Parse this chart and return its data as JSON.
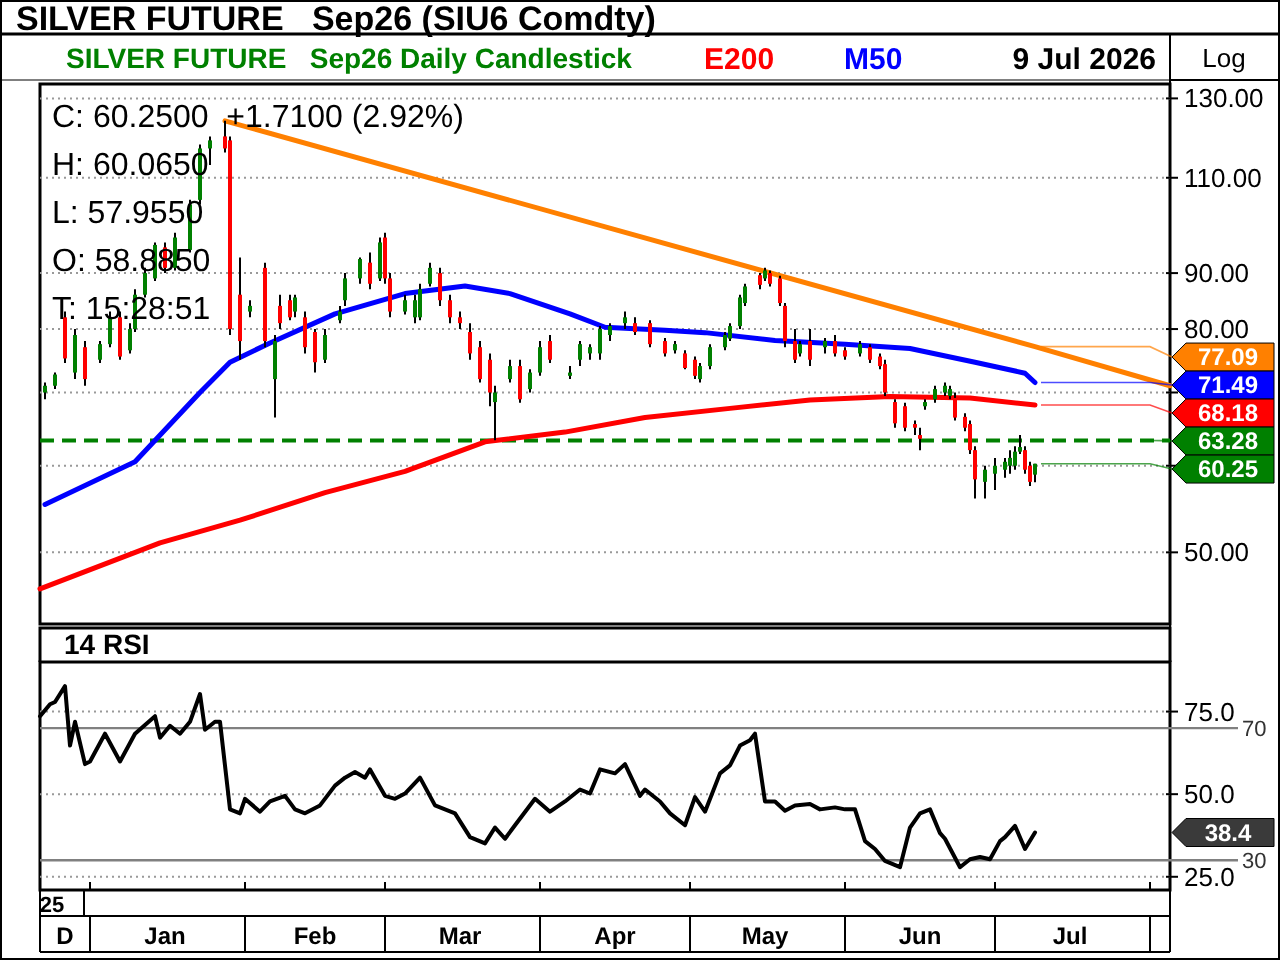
{
  "chart_data": [
    {
      "type": "candlestick",
      "title": "SILVER FUTURE   Sep26 (SIU6 Comdty)",
      "subtitle": "SILVER FUTURE   Sep26 Daily Candlestick",
      "legend": "top",
      "log": true,
      "grid": "y",
      "tick_labels": "y",
      "annotations": [
        "C: 60.2500  +1.7100 (2.92%)",
        "H: 60.0650",
        "L: 57.9550",
        "O: 58.8850",
        "T: 15:28:51",
        "9 Jul 2026",
        "Log",
        {
          "text": "60.25",
          "x": "2026-07-09",
          "y": 60.25
        }
      ],
      "xlim": [
        "2025-12-22",
        "2026-08-05"
      ],
      "ylim": [
        43,
        134
      ],
      "yticks": [
        {
          "value": 50,
          "label": "50.00"
        },
        {
          "value": 60,
          "label": null
        },
        {
          "value": 70,
          "label": null
        },
        {
          "value": 80,
          "label": "80.00"
        },
        {
          "value": 90,
          "label": "90.00"
        },
        {
          "value": 110,
          "label": "110.00"
        },
        {
          "value": 130,
          "label": "130.00"
        }
      ],
      "ref_lines": [
        {
          "axis": "y",
          "value": 63.28,
          "label": "63.28",
          "color": "#008000",
          "line_style": "dashed"
        }
      ],
      "series": [
        {
          "type": "candlestick",
          "color": "#008000",
          "x": [
            "2025-12-23",
            "2025-12-25",
            "2025-12-29",
            "2026-01-03",
            "2026-01-05",
            "2026-01-09",
            "2026-01-10",
            "2026-01-12",
            "2026-01-14",
            "2026-01-18",
            "2026-01-21",
            "2026-01-23",
            "2026-01-25",
            "2026-02-02",
            "2026-02-07",
            "2026-02-11",
            "2026-02-17",
            "2026-02-20",
            "2026-02-21",
            "2026-02-24",
            "2026-02-28",
            "2026-03-05",
            "2026-03-07",
            "2026-03-08",
            "2026-03-10",
            "2026-03-23",
            "2026-03-26",
            "2026-03-30",
            "2026-04-01",
            "2026-04-07",
            "2026-04-09",
            "2026-04-11",
            "2026-04-13",
            "2026-04-15",
            "2026-04-18",
            "2026-04-28",
            "2026-05-03",
            "2026-05-05",
            "2026-05-08",
            "2026-05-09",
            "2026-05-11",
            "2026-05-12",
            "2026-05-16",
            "2026-05-23",
            "2026-05-28",
            "2026-06-04",
            "2026-06-17",
            "2026-06-19",
            "2026-06-21",
            "2026-06-22",
            "2026-06-29",
            "2026-07-01",
            "2026-07-03",
            "2026-07-04",
            "2026-07-05",
            "2026-07-06",
            "2026-07-09"
          ],
          "ohlc": [
            [
              70,
              71.5,
              69,
              71
            ],
            [
              71,
              73,
              70.5,
              72.7
            ],
            [
              73,
              80,
              72,
              79
            ],
            [
              75,
              78,
              74.5,
              77.5
            ],
            [
              77.5,
              83,
              77,
              82
            ],
            [
              76.5,
              81,
              76,
              80
            ],
            [
              80,
              87,
              79.5,
              86
            ],
            [
              86,
              91,
              85.5,
              90
            ],
            [
              89,
              96,
              88.5,
              95.5
            ],
            [
              91,
              98,
              90.5,
              97
            ],
            [
              94.5,
              105,
              94,
              104
            ],
            [
              105,
              118,
              104,
              117
            ],
            [
              117,
              120,
              113,
              119
            ],
            [
              83,
              85,
              82,
              84
            ],
            [
              72,
              79,
              66.4,
              78
            ],
            [
              83,
              86,
              82,
              85.5
            ],
            [
              75,
              80,
              74.5,
              79
            ],
            [
              81.5,
              84,
              81,
              83
            ],
            [
              85,
              90,
              84,
              89
            ],
            [
              89,
              93,
              88,
              92.7
            ],
            [
              89,
              97,
              88.5,
              96
            ],
            [
              83,
              86,
              82.5,
              85
            ],
            [
              82,
              86,
              81,
              85
            ],
            [
              82,
              88,
              81.5,
              87
            ],
            [
              88,
              92,
              87.5,
              91
            ],
            [
              68.6,
              71,
              63.3,
              70
            ],
            [
              72,
              75,
              71.5,
              74
            ],
            [
              70.5,
              73.5,
              70,
              73
            ],
            [
              73,
              78,
              72.5,
              77
            ],
            [
              72.5,
              74,
              72,
              73
            ],
            [
              75,
              78,
              74,
              77.5
            ],
            [
              76,
              77.5,
              75,
              77
            ],
            [
              76,
              80.5,
              75,
              80
            ],
            [
              79,
              81,
              78,
              80.5
            ],
            [
              81,
              83,
              80,
              82
            ],
            [
              76.5,
              78,
              76,
              77.5
            ],
            [
              72,
              74.5,
              71.5,
              74
            ],
            [
              74,
              77.5,
              73.5,
              77
            ],
            [
              77,
              79.5,
              76.5,
              79
            ],
            [
              78.4,
              81,
              78,
              80.5
            ],
            [
              80.5,
              86,
              80,
              85.5
            ],
            [
              84.5,
              88,
              84,
              87.5
            ],
            [
              89,
              91,
              88.5,
              90.5
            ],
            [
              76,
              78,
              75.5,
              77.5
            ],
            [
              77,
              78.5,
              76,
              78
            ],
            [
              76,
              78,
              75.5,
              77.5
            ],
            [
              68,
              69,
              67.5,
              68.6
            ],
            [
              69,
              71,
              68.5,
              70.5
            ],
            [
              70,
              71.5,
              69.5,
              71
            ],
            [
              69.5,
              71,
              69,
              70.5
            ],
            [
              58,
              60,
              56,
              59.5
            ],
            [
              59,
              61,
              57,
              60
            ],
            [
              59.5,
              61,
              58.5,
              60.5
            ],
            [
              60,
              62,
              59,
              61
            ],
            [
              60,
              62.5,
              59.5,
              61.8
            ],
            [
              61.8,
              64,
              61.5,
              62.4
            ],
            [
              58.885,
              60.25,
              57.955,
              60.25
            ]
          ]
        },
        {
          "type": "candlestick",
          "color": "#ff0000",
          "x": [
            "2025-12-27",
            "2025-12-31",
            "2026-01-07",
            "2026-01-16",
            "2026-01-28",
            "2026-01-29",
            "2026-01-31",
            "2026-02-05",
            "2026-02-08",
            "2026-02-10",
            "2026-02-13",
            "2026-02-15",
            "2026-02-26",
            "2026-03-01",
            "2026-03-02",
            "2026-03-12",
            "2026-03-14",
            "2026-03-16",
            "2026-03-18",
            "2026-03-20",
            "2026-03-22",
            "2026-03-28",
            "2026-04-03",
            "2026-04-20",
            "2026-04-23",
            "2026-04-26",
            "2026-04-30",
            "2026-05-02",
            "2026-05-15",
            "2026-05-17",
            "2026-05-19",
            "2026-05-20",
            "2026-05-22",
            "2026-05-25",
            "2026-05-30",
            "2026-06-01",
            "2026-06-06",
            "2026-06-08",
            "2026-06-09",
            "2026-06-11",
            "2026-06-13",
            "2026-06-15",
            "2026-06-16",
            "2026-06-23",
            "2026-06-25",
            "2026-06-26",
            "2026-06-27",
            "2026-07-07",
            "2026-07-08"
          ],
          "ohlc": [
            [
              82,
              83,
              74.5,
              75.2
            ],
            [
              77,
              78,
              71,
              72
            ],
            [
              82,
              83,
              75,
              75.5
            ],
            [
              95,
              96,
              90,
              91
            ],
            [
              120,
              124,
              116,
              117
            ],
            [
              119,
              120,
              79,
              80
            ],
            [
              86,
              93,
              75,
              78
            ],
            [
              91,
              92,
              77,
              78
            ],
            [
              84,
              86,
              80,
              81
            ],
            [
              85,
              86,
              81.5,
              82
            ],
            [
              82,
              83,
              76,
              77
            ],
            [
              79.5,
              80,
              73,
              74.6
            ],
            [
              92,
              94,
              87,
              88
            ],
            [
              97,
              98,
              88,
              89
            ],
            [
              89,
              90,
              82,
              83
            ],
            [
              90,
              91,
              84,
              85
            ],
            [
              85,
              86,
              81,
              82
            ],
            [
              82,
              83,
              80,
              81
            ],
            [
              79.5,
              81,
              75,
              76
            ],
            [
              77,
              78,
              71.5,
              72
            ],
            [
              75,
              76,
              68,
              70
            ],
            [
              74,
              75,
              68.5,
              69
            ],
            [
              78,
              79,
              74.5,
              75
            ],
            [
              81,
              82,
              79,
              79.5
            ],
            [
              81,
              81.5,
              77,
              77.5
            ],
            [
              78,
              78.5,
              75.5,
              76
            ],
            [
              76,
              76.5,
              73.5,
              73.7
            ],
            [
              75,
              75.5,
              72,
              72.5
            ],
            [
              89.6,
              90,
              87,
              87.8
            ],
            [
              90,
              90.5,
              87.5,
              88
            ],
            [
              89,
              89.5,
              84,
              84.5
            ],
            [
              84,
              84.5,
              77,
              78
            ],
            [
              78,
              80,
              74.5,
              75
            ],
            [
              78,
              80,
              74,
              75
            ],
            [
              78,
              79,
              75.5,
              76
            ],
            [
              76.5,
              77,
              75,
              75.5
            ],
            [
              77,
              77.5,
              74.5,
              75
            ],
            [
              75.5,
              76,
              73.5,
              74
            ],
            [
              74.3,
              75,
              69.5,
              70
            ],
            [
              68.6,
              69,
              65,
              65.6
            ],
            [
              68,
              68.5,
              64.5,
              65
            ],
            [
              65.5,
              66,
              64,
              65
            ],
            [
              64,
              65,
              62,
              63.5
            ],
            [
              69.2,
              70,
              66,
              66.4
            ],
            [
              66.5,
              67,
              64.5,
              65
            ],
            [
              65.5,
              66,
              61.5,
              62
            ],
            [
              62,
              62.5,
              56,
              58.3
            ],
            [
              62,
              62.5,
              59,
              59.5
            ],
            [
              60,
              60.5,
              57.5,
              58
            ]
          ]
        },
        {
          "type": "line",
          "name": "E200",
          "color": "#ff0000",
          "x": [
            "2025-12-22",
            "2026-01-15",
            "2026-01-31",
            "2026-02-17",
            "2026-03-05",
            "2026-03-21",
            "2026-04-06",
            "2026-04-22",
            "2026-05-09",
            "2026-05-25",
            "2026-06-10",
            "2026-06-26",
            "2026-07-09"
          ],
          "values": [
            46.3,
            51,
            53.5,
            56.7,
            59.3,
            63.1,
            64.4,
            66.4,
            67.7,
            68.9,
            69.4,
            69.2,
            68.18
          ],
          "value_labels": [
            null,
            null,
            null,
            null,
            null,
            null,
            null,
            null,
            null,
            null,
            null,
            null,
            "68.18"
          ]
        },
        {
          "type": "line",
          "name": "M50",
          "color": "#0000ff",
          "x": [
            "2025-12-23",
            "2026-01-10",
            "2026-01-23",
            "2026-01-29",
            "2026-02-06",
            "2026-02-19",
            "2026-03-05",
            "2026-03-17",
            "2026-03-26",
            "2026-04-07",
            "2026-04-14",
            "2026-04-26",
            "2026-05-04",
            "2026-05-18",
            "2026-06-01",
            "2026-06-14",
            "2026-06-27",
            "2026-07-07",
            "2026-07-09"
          ],
          "values": [
            55.3,
            60.5,
            70,
            74.6,
            77.7,
            82.6,
            86.2,
            87.6,
            86.2,
            82.6,
            80.3,
            79.8,
            79.4,
            78.1,
            77.5,
            76.8,
            74.6,
            72.9,
            71.49
          ],
          "value_labels": [
            null,
            null,
            null,
            null,
            null,
            null,
            null,
            null,
            null,
            null,
            null,
            null,
            null,
            null,
            null,
            null,
            null,
            null,
            "71.49"
          ]
        },
        {
          "type": "line",
          "color": "#ff8000",
          "x": [
            "2026-01-28",
            "2026-07-09",
            "2026-08-05"
          ],
          "values": [
            124,
            77.09,
            71
          ],
          "value_labels": [
            null,
            "77.09",
            null
          ]
        }
      ]
    },
    {
      "type": "line",
      "title": "14 RSI",
      "grid": "y",
      "annotations": [
        "25",
        "38.4"
      ],
      "xlim": [
        "2025-12-22",
        "2026-08-05"
      ],
      "ylim": [
        21,
        90
      ],
      "yticks": [
        {
          "value": 25,
          "label": "25.0"
        },
        {
          "value": 50,
          "label": "50.0"
        },
        {
          "value": 75,
          "label": "75.0"
        }
      ],
      "xticks": [
        {
          "value": "2026-01-01",
          "label": null
        },
        {
          "value": "2026-02-01",
          "label": null
        },
        {
          "value": "2026-03-01",
          "label": null
        },
        {
          "value": "2026-04-01",
          "label": null
        },
        {
          "value": "2026-05-01",
          "label": null
        },
        {
          "value": "2026-06-01",
          "label": null
        },
        {
          "value": "2026-07-01",
          "label": null
        },
        {
          "value": "2026-08-01",
          "label": null
        },
        {
          "value": "2025-12-27",
          "label": "D"
        },
        {
          "value": "2026-01-16",
          "label": "Jan"
        },
        {
          "value": "2026-02-15",
          "label": "Feb"
        },
        {
          "value": "2026-03-16",
          "label": "Mar"
        },
        {
          "value": "2026-04-16",
          "label": "Apr"
        },
        {
          "value": "2026-05-16",
          "label": "May"
        },
        {
          "value": "2026-06-16",
          "label": "Jun"
        },
        {
          "value": "2026-07-16",
          "label": "Jul"
        }
      ],
      "ref_lines": [
        {
          "axis": "y",
          "value": 70,
          "label": "70"
        },
        {
          "axis": "y",
          "value": 30,
          "label": "30"
        }
      ],
      "series": [
        {
          "color": "#000000",
          "x": [
            "2025-12-22",
            "2025-12-24",
            "2025-12-25",
            "2025-12-27",
            "2025-12-28",
            "2025-12-29",
            "2025-12-31",
            "2026-01-01",
            "2026-01-04",
            "2026-01-07",
            "2026-01-10",
            "2026-01-14",
            "2026-01-15",
            "2026-01-17",
            "2026-01-19",
            "2026-01-21",
            "2026-01-23",
            "2026-01-24",
            "2026-01-26",
            "2026-01-27",
            "2026-01-29",
            "2026-01-31",
            "2026-02-01",
            "2026-02-04",
            "2026-02-06",
            "2026-02-09",
            "2026-02-11",
            "2026-02-13",
            "2026-02-16",
            "2026-02-19",
            "2026-02-21",
            "2026-02-23",
            "2026-02-25",
            "2026-02-26",
            "2026-03-01",
            "2026-03-03",
            "2026-03-05",
            "2026-03-08",
            "2026-03-11",
            "2026-03-15",
            "2026-03-18",
            "2026-03-21",
            "2026-03-23",
            "2026-03-25",
            "2026-03-27",
            "2026-03-31",
            "2026-04-03",
            "2026-04-06",
            "2026-04-09",
            "2026-04-11",
            "2026-04-13",
            "2026-04-16",
            "2026-04-18",
            "2026-04-21",
            "2026-04-22",
            "2026-04-25",
            "2026-04-27",
            "2026-04-30",
            "2026-05-02",
            "2026-05-04",
            "2026-05-07",
            "2026-05-09",
            "2026-05-11",
            "2026-05-13",
            "2026-05-14",
            "2026-05-16",
            "2026-05-18",
            "2026-05-20",
            "2026-05-22",
            "2026-05-25",
            "2026-05-27",
            "2026-05-30",
            "2026-06-01",
            "2026-06-03",
            "2026-06-05",
            "2026-06-07",
            "2026-06-09",
            "2026-06-12",
            "2026-06-14",
            "2026-06-16",
            "2026-06-18",
            "2026-06-20",
            "2026-06-21",
            "2026-06-24",
            "2026-06-26",
            "2026-06-28",
            "2026-06-30",
            "2026-07-02",
            "2026-07-03",
            "2026-07-05",
            "2026-07-07",
            "2026-07-09"
          ],
          "values": [
            73.6,
            77.2,
            77.9,
            82.7,
            64.7,
            71.9,
            59.1,
            59.9,
            68.3,
            59.9,
            68.3,
            73.6,
            67.1,
            70.7,
            68.3,
            71.9,
            80.3,
            69.5,
            71.9,
            71.9,
            45.4,
            44.2,
            48.6,
            44.7,
            47.8,
            49.5,
            45.4,
            44.2,
            46.6,
            52.6,
            55,
            56.7,
            55,
            57.5,
            49.5,
            48.6,
            50.2,
            55,
            46.6,
            44.2,
            37,
            35.1,
            39.9,
            36.5,
            40.6,
            48.6,
            44.7,
            47.8,
            51.4,
            50.2,
            57.5,
            56.3,
            59.1,
            49.5,
            51.4,
            47.8,
            44.2,
            40.6,
            49.1,
            44.7,
            56.3,
            58.7,
            64.7,
            66.3,
            68.3,
            47.8,
            47.8,
            45,
            46.6,
            47,
            45.4,
            46,
            45.4,
            45.4,
            35.8,
            33.4,
            29.8,
            27.9,
            39.9,
            44.2,
            45.4,
            38.2,
            36.5,
            27.9,
            30.3,
            31,
            30.3,
            35.8,
            37,
            40.4,
            33.4,
            38.4
          ]
        }
      ]
    }
  ]
}
